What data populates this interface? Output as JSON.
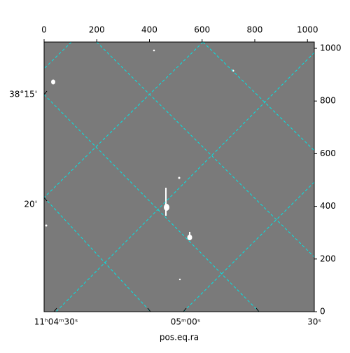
{
  "chart_data": {
    "type": "image",
    "xlabel": "pos.eq.ra",
    "xlim": [
      0,
      1026
    ],
    "xticks": [
      0,
      200,
      400,
      600,
      800,
      1000
    ],
    "ylim": [
      0,
      1024
    ],
    "yticks": [
      0,
      200,
      400,
      600,
      800,
      1000
    ],
    "ra_ticks": [
      "11ʰ04ᵐ30ˢ",
      "05ᵐ00ˢ",
      "30ˢ"
    ],
    "dec_ticks": [
      "38°15'",
      "20'"
    ],
    "grid_color": "#00e5e5"
  }
}
